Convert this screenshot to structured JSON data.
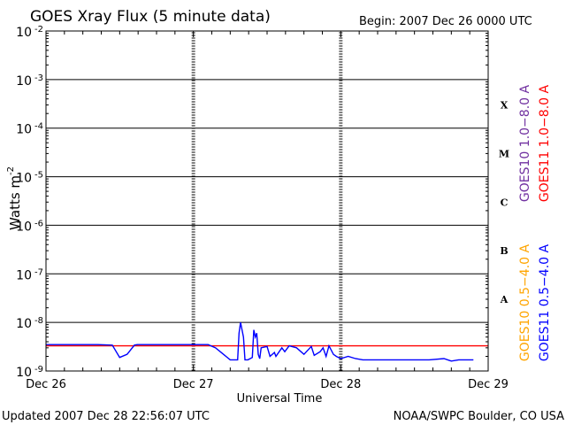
{
  "chart_data": {
    "type": "line",
    "title": "GOES Xray Flux (5 minute data)",
    "begin_label": "Begin:  2007 Dec 26 0000 UTC",
    "ylabel": "Watts m",
    "ylabel_sup": "-2",
    "xlabel": "Universal Time",
    "footer_left": "Updated 2007 Dec 28 22:56:07 UTC",
    "footer_right": "NOAA/SWPC Boulder, CO USA",
    "y_scale": "log",
    "ylim": [
      1e-09,
      0.01
    ],
    "grid": true,
    "y_ticks": [
      {
        "base": "10",
        "exp": "-2",
        "value": 0.01
      },
      {
        "base": "10",
        "exp": "-3",
        "value": 0.001
      },
      {
        "base": "10",
        "exp": "-4",
        "value": 0.0001
      },
      {
        "base": "10",
        "exp": "-5",
        "value": 1e-05
      },
      {
        "base": "10",
        "exp": "-6",
        "value": 1e-06
      },
      {
        "base": "10",
        "exp": "-7",
        "value": 1e-07
      },
      {
        "base": "10",
        "exp": "-8",
        "value": 1e-08
      },
      {
        "base": "10",
        "exp": "-9",
        "value": 1e-09
      }
    ],
    "x_ticks": [
      "Dec 26",
      "Dec 27",
      "Dec 28",
      "Dec 29"
    ],
    "flare_classes": [
      {
        "label": "X",
        "value": 0.0003
      },
      {
        "label": "M",
        "value": 3e-05
      },
      {
        "label": "C",
        "value": 3e-06
      },
      {
        "label": "B",
        "value": 3e-07
      },
      {
        "label": "A",
        "value": 3e-08
      }
    ],
    "legend_upper": [
      {
        "name": "GOES10 1.0−8.0 A",
        "color": "#7030a0"
      },
      {
        "name": "GOES11 1.0−8.0 A",
        "color": "#ff0000"
      }
    ],
    "legend_lower": [
      {
        "name": "GOES10 0.5−4.0 A",
        "color": "#ffa500"
      },
      {
        "name": "GOES11 0.5−4.0 A",
        "color": "#0000ff"
      }
    ],
    "series": [
      {
        "name": "GOES11 1.0−8.0 A",
        "color": "#ff0000",
        "x_days": [
          0,
          3
        ],
        "y": [
          3.3e-09,
          3.3e-09
        ]
      },
      {
        "name": "GOES11 0.5−4.0 A",
        "color": "#0000ff",
        "x_days": [
          0,
          0.35,
          0.45,
          0.5,
          0.55,
          0.6,
          0.62,
          1.1,
          1.15,
          1.25,
          1.3,
          1.31,
          1.32,
          1.34,
          1.35,
          1.37,
          1.4,
          1.41,
          1.42,
          1.43,
          1.44,
          1.45,
          1.46,
          1.5,
          1.52,
          1.55,
          1.56,
          1.6,
          1.62,
          1.65,
          1.7,
          1.75,
          1.8,
          1.82,
          1.86,
          1.88,
          1.9,
          1.92,
          1.95,
          1.97,
          2.0,
          2.05,
          2.1,
          2.15,
          2.3,
          2.6,
          2.7,
          2.75,
          2.8,
          2.9
        ],
        "y": [
          3.5e-09,
          3.5e-09,
          3.4e-09,
          1.9e-09,
          2.2e-09,
          3.4e-09,
          3.5e-09,
          3.5e-09,
          3e-09,
          1.7e-09,
          1.7e-09,
          6e-09,
          1e-08,
          5e-09,
          1.7e-09,
          1.7e-09,
          1.9e-09,
          7e-09,
          5e-09,
          6e-09,
          2.2e-09,
          1.8e-09,
          3e-09,
          3.2e-09,
          2e-09,
          2.4e-09,
          2e-09,
          3e-09,
          2.5e-09,
          3.3e-09,
          3e-09,
          2.2e-09,
          3.2e-09,
          2.1e-09,
          2.5e-09,
          3e-09,
          2e-09,
          3.3e-09,
          2.2e-09,
          2e-09,
          1.8e-09,
          2e-09,
          1.8e-09,
          1.7e-09,
          1.7e-09,
          1.7e-09,
          1.8e-09,
          1.6e-09,
          1.7e-09,
          1.7e-09
        ]
      }
    ]
  }
}
